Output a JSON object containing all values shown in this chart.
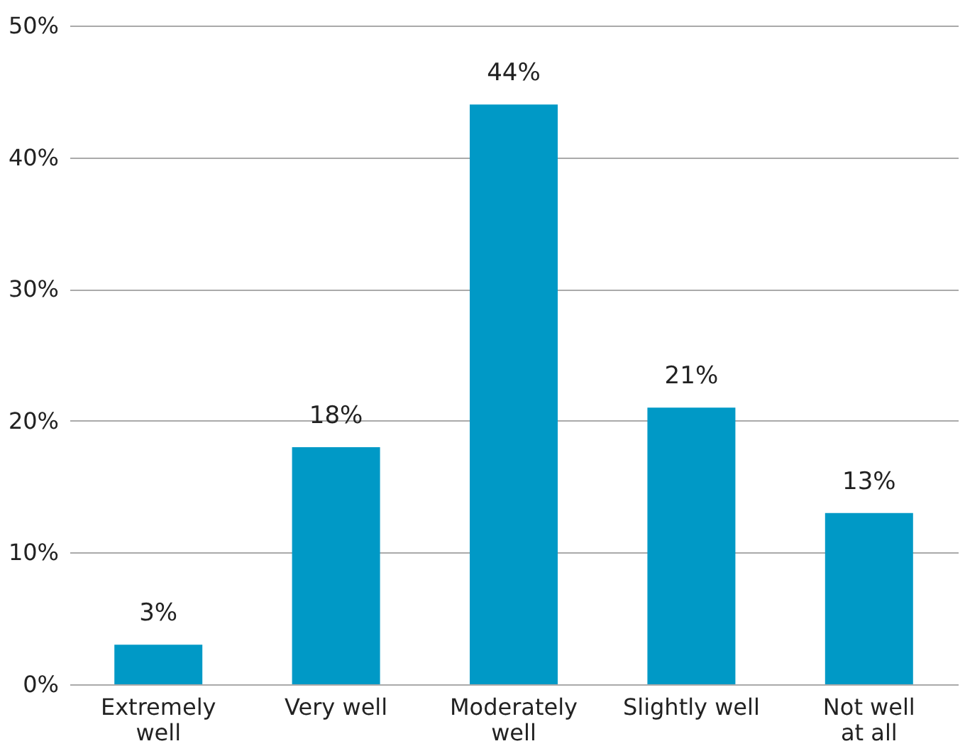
{
  "chart_data": {
    "type": "bar",
    "categories": [
      "Extremely well",
      "Very well",
      "Moderately well",
      "Slightly well",
      "Not well at all"
    ],
    "values": [
      3,
      18,
      44,
      21,
      13
    ],
    "value_labels": [
      "3%",
      "18%",
      "44%",
      "21%",
      "13%"
    ],
    "color": "#0099c6",
    "ylim": [
      0,
      50
    ],
    "yticks": [
      {
        "value": 0,
        "label": "0%"
      },
      {
        "value": 10,
        "label": "10%"
      },
      {
        "value": 20,
        "label": "20%"
      },
      {
        "value": 30,
        "label": "30%"
      },
      {
        "value": 40,
        "label": "40%"
      },
      {
        "value": 50,
        "label": "50%"
      }
    ],
    "grid": "y"
  }
}
